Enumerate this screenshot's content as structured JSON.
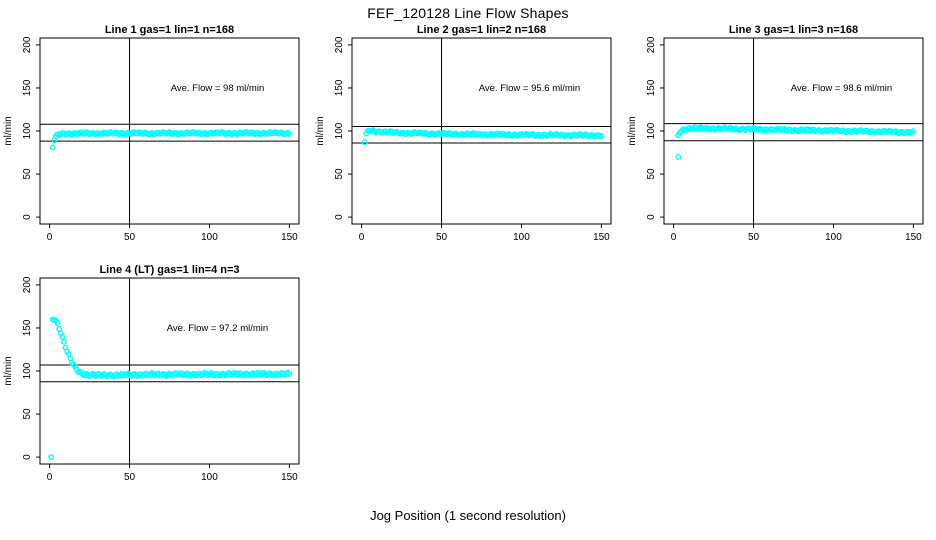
{
  "page": {
    "main_title": "FEF_120128  Line Flow Shapes",
    "shared_xlabel": "Jog Position (1 second resolution)"
  },
  "style": {
    "marker_color": "#00FFFF",
    "axis_color": "#000000",
    "background": "#FFFFFF"
  },
  "chart_data": [
    {
      "type": "scatter",
      "title": "Line 1 gas=1 lin=1 n=168",
      "annotation": "Ave. Flow =  98  ml/min",
      "ave_flow_ml_min": 98,
      "n": 168,
      "ylabel": "ml/min",
      "x_ticks": [
        0,
        50,
        100,
        150
      ],
      "y_ticks": [
        0,
        50,
        100,
        150,
        200
      ],
      "xlim": [
        -6,
        156
      ],
      "ylim": [
        -8,
        208
      ],
      "ref_lines": {
        "h_upper": 107.8,
        "h_lower": 88.2,
        "v": 50
      },
      "outliers": [
        [
          2,
          81
        ]
      ],
      "profile": [
        [
          3,
          90
        ],
        [
          4,
          93
        ],
        [
          5,
          95
        ],
        [
          7,
          96.5
        ],
        [
          10,
          97
        ],
        [
          30,
          97.3
        ],
        [
          80,
          97.4
        ],
        [
          150,
          97.5
        ]
      ],
      "x_range": [
        3,
        150
      ],
      "annotation_pos": [
        105,
        150
      ],
      "grid": false,
      "legend": "none"
    },
    {
      "type": "scatter",
      "title": "Line 2 gas=1 lin=2 n=168",
      "annotation": "Ave. Flow =  95.6  ml/min",
      "ave_flow_ml_min": 95.6,
      "n": 168,
      "ylabel": "ml/min",
      "x_ticks": [
        0,
        50,
        100,
        150
      ],
      "y_ticks": [
        0,
        50,
        100,
        150,
        200
      ],
      "xlim": [
        -6,
        156
      ],
      "ylim": [
        -8,
        208
      ],
      "ref_lines": {
        "h_upper": 105.2,
        "h_lower": 86.0,
        "v": 50
      },
      "outliers": [
        [
          2,
          87
        ]
      ],
      "profile": [
        [
          3,
          96
        ],
        [
          4,
          99.5
        ],
        [
          5,
          100.5
        ],
        [
          7,
          100.3
        ],
        [
          12,
          99
        ],
        [
          25,
          97.8
        ],
        [
          50,
          96.6
        ],
        [
          90,
          95.7
        ],
        [
          120,
          95.2
        ],
        [
          150,
          94.8
        ]
      ],
      "x_range": [
        3,
        150
      ],
      "annotation_pos": [
        105,
        150
      ],
      "grid": false,
      "legend": "none"
    },
    {
      "type": "scatter",
      "title": "Line 3 gas=1 lin=3 n=168",
      "annotation": "Ave. Flow =  98.6  ml/min",
      "ave_flow_ml_min": 98.6,
      "n": 168,
      "ylabel": "ml/min",
      "x_ticks": [
        0,
        50,
        100,
        150
      ],
      "y_ticks": [
        0,
        50,
        100,
        150,
        200
      ],
      "xlim": [
        -6,
        156
      ],
      "ylim": [
        -8,
        208
      ],
      "ref_lines": {
        "h_upper": 108.5,
        "h_lower": 88.7,
        "v": 50
      },
      "outliers": [
        [
          3,
          70
        ]
      ],
      "profile": [
        [
          3,
          95
        ],
        [
          4,
          99
        ],
        [
          6,
          101.5
        ],
        [
          9,
          102.8
        ],
        [
          20,
          103
        ],
        [
          40,
          102.3
        ],
        [
          70,
          101.3
        ],
        [
          100,
          100.3
        ],
        [
          125,
          99.4
        ],
        [
          150,
          98.4
        ]
      ],
      "x_range": [
        3,
        150
      ],
      "annotation_pos": [
        105,
        150
      ],
      "grid": false,
      "legend": "none"
    },
    {
      "type": "scatter",
      "title": "Line 4 (LT) gas=1 lin=4 n=3",
      "annotation": "Ave. Flow =  97.2  ml/min",
      "ave_flow_ml_min": 97.2,
      "n": 3,
      "ylabel": "ml/min",
      "x_ticks": [
        0,
        50,
        100,
        150
      ],
      "y_ticks": [
        0,
        50,
        100,
        150,
        200
      ],
      "xlim": [
        -6,
        156
      ],
      "ylim": [
        -8,
        208
      ],
      "ref_lines": {
        "h_upper": 106.9,
        "h_lower": 87.5,
        "v": 50
      },
      "outliers": [
        [
          1,
          0
        ]
      ],
      "profile": [
        [
          2,
          160
        ],
        [
          3,
          161
        ],
        [
          4,
          159
        ],
        [
          5,
          155
        ],
        [
          6,
          150
        ],
        [
          7,
          145
        ],
        [
          8,
          139
        ],
        [
          9,
          133
        ],
        [
          10,
          128
        ],
        [
          11,
          123
        ],
        [
          12,
          118
        ],
        [
          13,
          114
        ],
        [
          14,
          110
        ],
        [
          15,
          107
        ],
        [
          16,
          104
        ],
        [
          17,
          102
        ],
        [
          18,
          100
        ],
        [
          19,
          98.7
        ],
        [
          20,
          97.6
        ],
        [
          22,
          96.3
        ],
        [
          24,
          95.6
        ],
        [
          26,
          95.2
        ],
        [
          30,
          95
        ],
        [
          40,
          95.2
        ],
        [
          60,
          95.8
        ],
        [
          100,
          96.2
        ],
        [
          150,
          96.5
        ]
      ],
      "x_range": [
        2,
        150
      ],
      "annotation_pos": [
        105,
        150
      ],
      "grid": false,
      "legend": "none"
    }
  ]
}
